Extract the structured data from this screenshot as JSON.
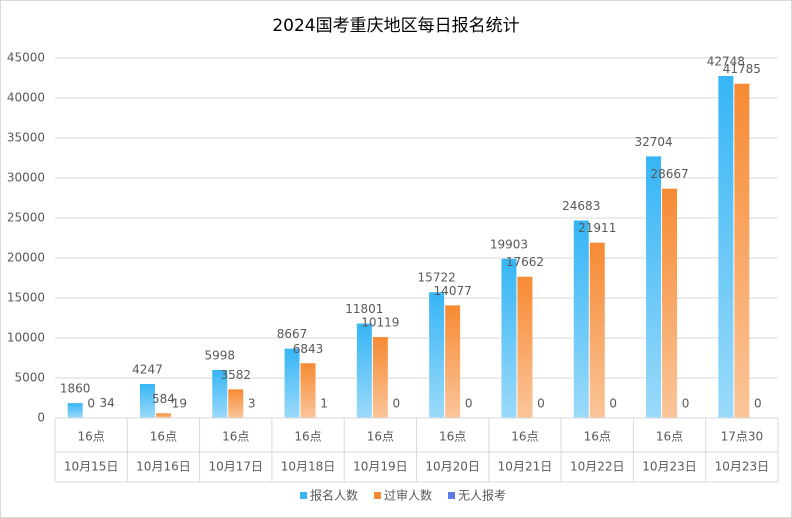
{
  "chart_data": {
    "type": "bar",
    "title": "2024国考重庆地区每日报名统计",
    "categories": [
      "16点",
      "16点",
      "16点",
      "16点",
      "16点",
      "16点",
      "16点",
      "16点",
      "16点",
      "17点30"
    ],
    "dates": [
      "10月15日",
      "10月16日",
      "10月17日",
      "10月18日",
      "10月19日",
      "10月20日",
      "10月21日",
      "10月22日",
      "10月23日",
      "10月23日"
    ],
    "series": [
      {
        "name": "报名人数",
        "color": "#36b5f5",
        "values": [
          1860,
          4247,
          5998,
          8667,
          11801,
          15722,
          19903,
          24683,
          32704,
          42748
        ]
      },
      {
        "name": "过审人数",
        "color": "#f68a33",
        "values": [
          0,
          584,
          3582,
          6843,
          10119,
          14077,
          17662,
          21911,
          28667,
          41785
        ]
      },
      {
        "name": "无人报考",
        "color": "#5b7be6",
        "values": [
          34,
          19,
          3,
          1,
          0,
          0,
          0,
          0,
          0,
          0
        ]
      }
    ],
    "ylim": [
      0,
      45000
    ],
    "yticks": [
      0,
      5000,
      10000,
      15000,
      20000,
      25000,
      30000,
      35000,
      40000,
      45000
    ],
    "grid": true,
    "legend": "bottom"
  }
}
